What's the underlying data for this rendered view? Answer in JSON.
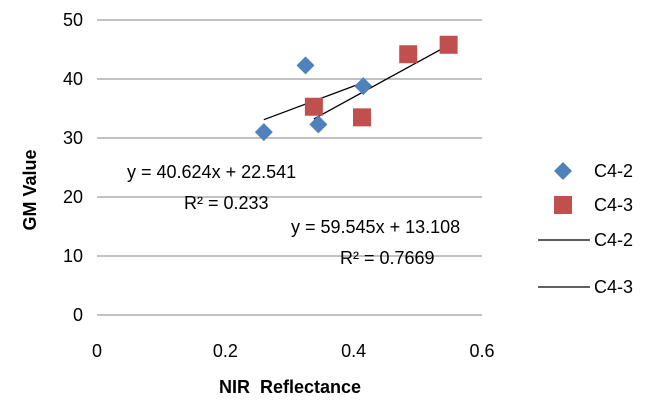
{
  "chart_data": {
    "type": "scatter",
    "title": "",
    "xlabel": "NIR  Reflectance",
    "ylabel": "GM Value",
    "xlim": [
      0,
      0.6
    ],
    "ylim": [
      0,
      50
    ],
    "x_ticks": [
      "0",
      "0.2",
      "0.4",
      "0.6"
    ],
    "y_ticks": [
      "0",
      "10",
      "20",
      "30",
      "40",
      "50"
    ],
    "grid": "horizontal",
    "legend_position": "right",
    "series": [
      {
        "name": "C4-2",
        "marker": "diamond",
        "color": "#4f81bd",
        "points": [
          {
            "x": 0.26,
            "y": 31.0
          },
          {
            "x": 0.325,
            "y": 42.3
          },
          {
            "x": 0.345,
            "y": 32.3
          },
          {
            "x": 0.415,
            "y": 38.8
          }
        ]
      },
      {
        "name": "C4-3",
        "marker": "square",
        "color": "#c0504d",
        "points": [
          {
            "x": 0.338,
            "y": 35.3
          },
          {
            "x": 0.413,
            "y": 33.5
          },
          {
            "x": 0.485,
            "y": 44.2
          },
          {
            "x": 0.548,
            "y": 45.8
          }
        ]
      }
    ],
    "trendlines": [
      {
        "name": "C4-2",
        "slope": 40.624,
        "intercept": 22.541,
        "x_range": [
          0.26,
          0.415
        ],
        "equation": "y = 40.624x + 22.541",
        "r2": "R² = 0.233",
        "color": "#000000"
      },
      {
        "name": "C4-3",
        "slope": 59.545,
        "intercept": 13.108,
        "x_range": [
          0.338,
          0.548
        ],
        "equation": "y = 59.545x + 13.108",
        "r2": "R² = 0.7669",
        "color": "#000000"
      }
    ]
  }
}
